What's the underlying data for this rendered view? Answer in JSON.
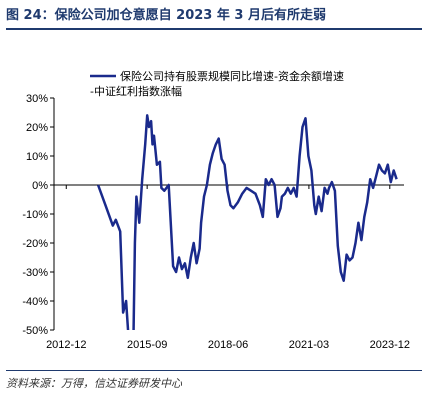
{
  "figure": {
    "title": "图 24：保险公司加仓意愿自 2023 年 3 月后有所走弱",
    "source": "资料来源：万得，信达证券研发中心"
  },
  "colors": {
    "series": "#1a2a8c",
    "axis": "#000000"
  },
  "chart_data": {
    "type": "line",
    "title": "",
    "xlabel": "",
    "ylabel": "",
    "ylim": [
      -50,
      30
    ],
    "xlim": [
      2012.5,
      2024.4
    ],
    "x_ticks": [
      2012.917,
      2015.667,
      2018.417,
      2021.167,
      2023.917
    ],
    "x_tick_labels": [
      "2012-12",
      "2015-09",
      "2018-06",
      "2021-03",
      "2023-12"
    ],
    "y_ticks": [
      30,
      20,
      10,
      0,
      -10,
      -20,
      -30,
      -40,
      -50
    ],
    "y_tick_labels": [
      "30%",
      "20%",
      "10%",
      "0%",
      "-10%",
      "-20%",
      "-30%",
      "-40%",
      "-50%"
    ],
    "legend": {
      "position": "top-right",
      "entries": [
        "保险公司持有股票规模同比增速-资金余额增速",
        "-中证红利指数涨幅"
      ]
    },
    "series": [
      {
        "name": "保险公司持有股票规模同比增速-资金余额增速-中证红利指数涨幅",
        "x": [
          2014.0,
          2014.25,
          2014.5,
          2014.6,
          2014.75,
          2014.85,
          2014.95,
          2015.05,
          2015.1,
          2015.2,
          2015.25,
          2015.3,
          2015.4,
          2015.5,
          2015.6,
          2015.67,
          2015.73,
          2015.8,
          2015.85,
          2015.9,
          2016.0,
          2016.1,
          2016.15,
          2016.25,
          2016.4,
          2016.55,
          2016.65,
          2016.75,
          2016.85,
          2016.95,
          2017.05,
          2017.15,
          2017.25,
          2017.35,
          2017.45,
          2017.5,
          2017.6,
          2017.7,
          2017.8,
          2017.9,
          2018.0,
          2018.1,
          2018.2,
          2018.3,
          2018.4,
          2018.5,
          2018.6,
          2018.75,
          2018.9,
          2019.05,
          2019.2,
          2019.35,
          2019.5,
          2019.6,
          2019.7,
          2019.8,
          2019.9,
          2020.0,
          2020.1,
          2020.2,
          2020.25,
          2020.35,
          2020.45,
          2020.55,
          2020.65,
          2020.75,
          2020.85,
          2020.95,
          2021.05,
          2021.15,
          2021.25,
          2021.35,
          2021.4,
          2021.5,
          2021.6,
          2021.7,
          2021.8,
          2021.85,
          2021.95,
          2022.05,
          2022.15,
          2022.25,
          2022.35,
          2022.45,
          2022.55,
          2022.65,
          2022.75,
          2022.85,
          2022.95,
          2023.05,
          2023.15,
          2023.25,
          2023.35,
          2023.45,
          2023.55,
          2023.65,
          2023.75,
          2023.85,
          2023.95,
          2024.05,
          2024.15
        ],
        "y": [
          0,
          -7,
          -14,
          -12,
          -16,
          -44,
          -40,
          -55,
          -51,
          -54,
          -20,
          -4,
          -13,
          2,
          14,
          24,
          20,
          22,
          14,
          17,
          7,
          8,
          -1,
          -2,
          0,
          -28,
          -30,
          -25,
          -29,
          -27,
          -32,
          -25,
          -20,
          -27,
          -22,
          -13,
          -4,
          0,
          7,
          11,
          14,
          16,
          9,
          7,
          -2,
          -7,
          -8,
          -6,
          -3,
          -1,
          -2,
          -3,
          -7,
          -11,
          2,
          0,
          2,
          0,
          -11,
          -8,
          -4,
          -3,
          -1,
          -3,
          -1,
          -4,
          10,
          20,
          23,
          10,
          5,
          -7,
          -10,
          -4,
          -9,
          -1,
          -3,
          -1,
          1,
          -2,
          -21,
          -30,
          -33,
          -24,
          -26,
          -25,
          -20,
          -13,
          -19,
          -11,
          -6,
          2,
          -1,
          3,
          7,
          5,
          4,
          7,
          1,
          5,
          2
        ]
      }
    ]
  }
}
